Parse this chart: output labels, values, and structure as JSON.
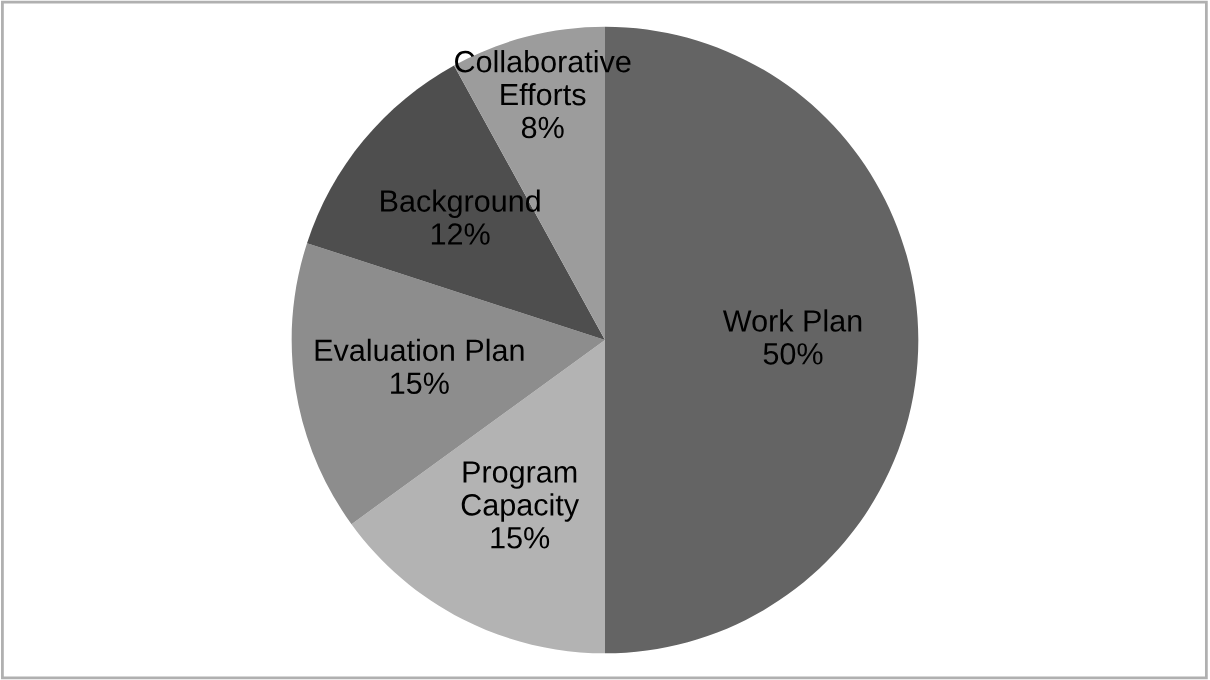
{
  "chart_data": {
    "type": "pie",
    "categories": [
      "Work Plan",
      "Program\nCapacity",
      "Evaluation Plan",
      "Background",
      "Collaborative\nEfforts"
    ],
    "values": [
      50,
      15,
      15,
      12,
      8
    ],
    "value_labels": [
      "50%",
      "15%",
      "15%",
      "12%",
      "8%"
    ],
    "colors": [
      "#646464",
      "#b3b3b3",
      "#8d8d8d",
      "#4e4e4e",
      "#9c9c9c"
    ],
    "legend": false
  }
}
